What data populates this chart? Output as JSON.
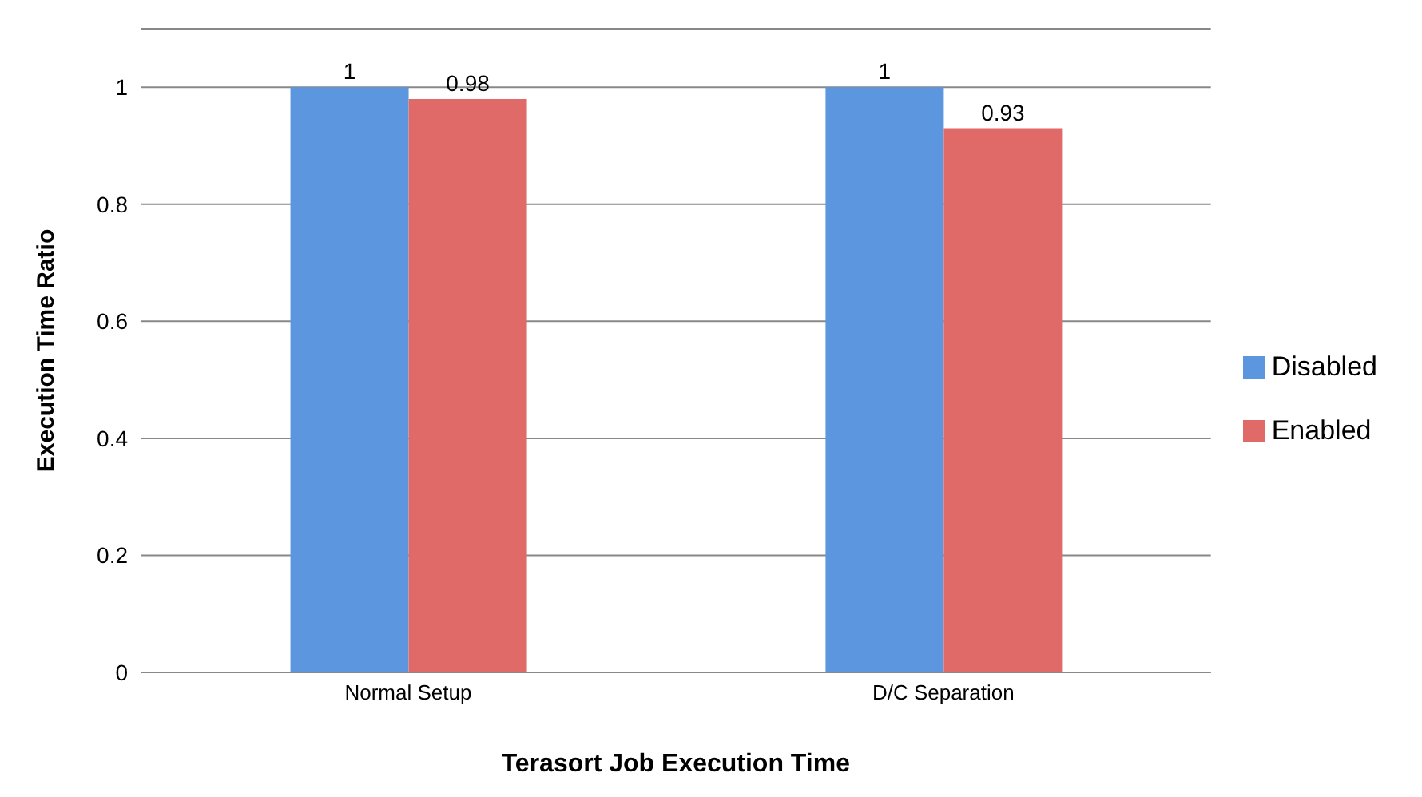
{
  "chart_data": {
    "type": "bar",
    "xlabel": "Terasort Job Execution Time",
    "ylabel": "Execution Time Ratio",
    "categories": [
      "Normal Setup",
      "D/C Separation"
    ],
    "series": [
      {
        "name": "Disabled",
        "color": "#5c96df",
        "values": [
          1,
          1
        ]
      },
      {
        "name": "Enabled",
        "color": "#e06a68",
        "values": [
          0.98,
          0.93
        ]
      }
    ],
    "ylim": [
      0,
      1.1
    ],
    "yticks": [
      0,
      0.2,
      0.4,
      0.6,
      0.8,
      1
    ],
    "grid": "y",
    "legend": "right",
    "data_labels": true
  }
}
